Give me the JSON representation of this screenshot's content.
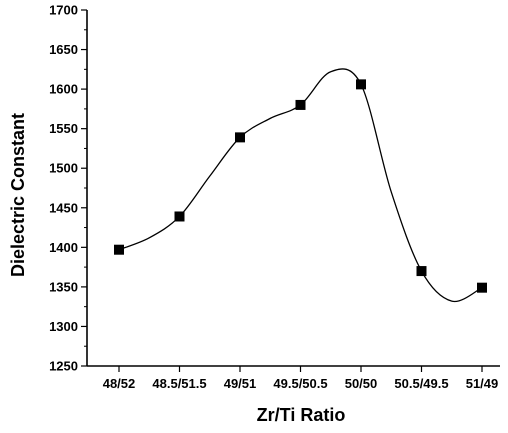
{
  "chart_data": {
    "type": "scatter",
    "title": "",
    "xlabel": "Zr/Ti  Ratio",
    "ylabel": "Dielectric Constant",
    "categories": [
      "48/52",
      "48.5/51.5",
      "49/51",
      "49.5/50.5",
      "50/50",
      "50.5/49.5",
      "51/49"
    ],
    "series": [
      {
        "values": [
          1397,
          1439,
          1539,
          1580,
          1606,
          1370,
          1349
        ]
      }
    ],
    "ylim": [
      1250,
      1700
    ],
    "yticks": [
      1250,
      1300,
      1350,
      1400,
      1450,
      1500,
      1550,
      1600,
      1650,
      1700
    ],
    "fit_curve": {
      "points": [
        [
          0.0,
          1397
        ],
        [
          0.5,
          1412
        ],
        [
          1.0,
          1439
        ],
        [
          1.5,
          1490
        ],
        [
          2.0,
          1539
        ],
        [
          2.5,
          1563
        ],
        [
          3.0,
          1580
        ],
        [
          3.5,
          1622
        ],
        [
          4.0,
          1606
        ],
        [
          4.5,
          1470
        ],
        [
          5.0,
          1370
        ],
        [
          5.5,
          1332
        ],
        [
          6.0,
          1349
        ]
      ]
    },
    "grid": false,
    "legend": "none",
    "marker": "square",
    "colors": {
      "marker": "#000000",
      "line": "#000000",
      "background": "#ffffff"
    }
  }
}
